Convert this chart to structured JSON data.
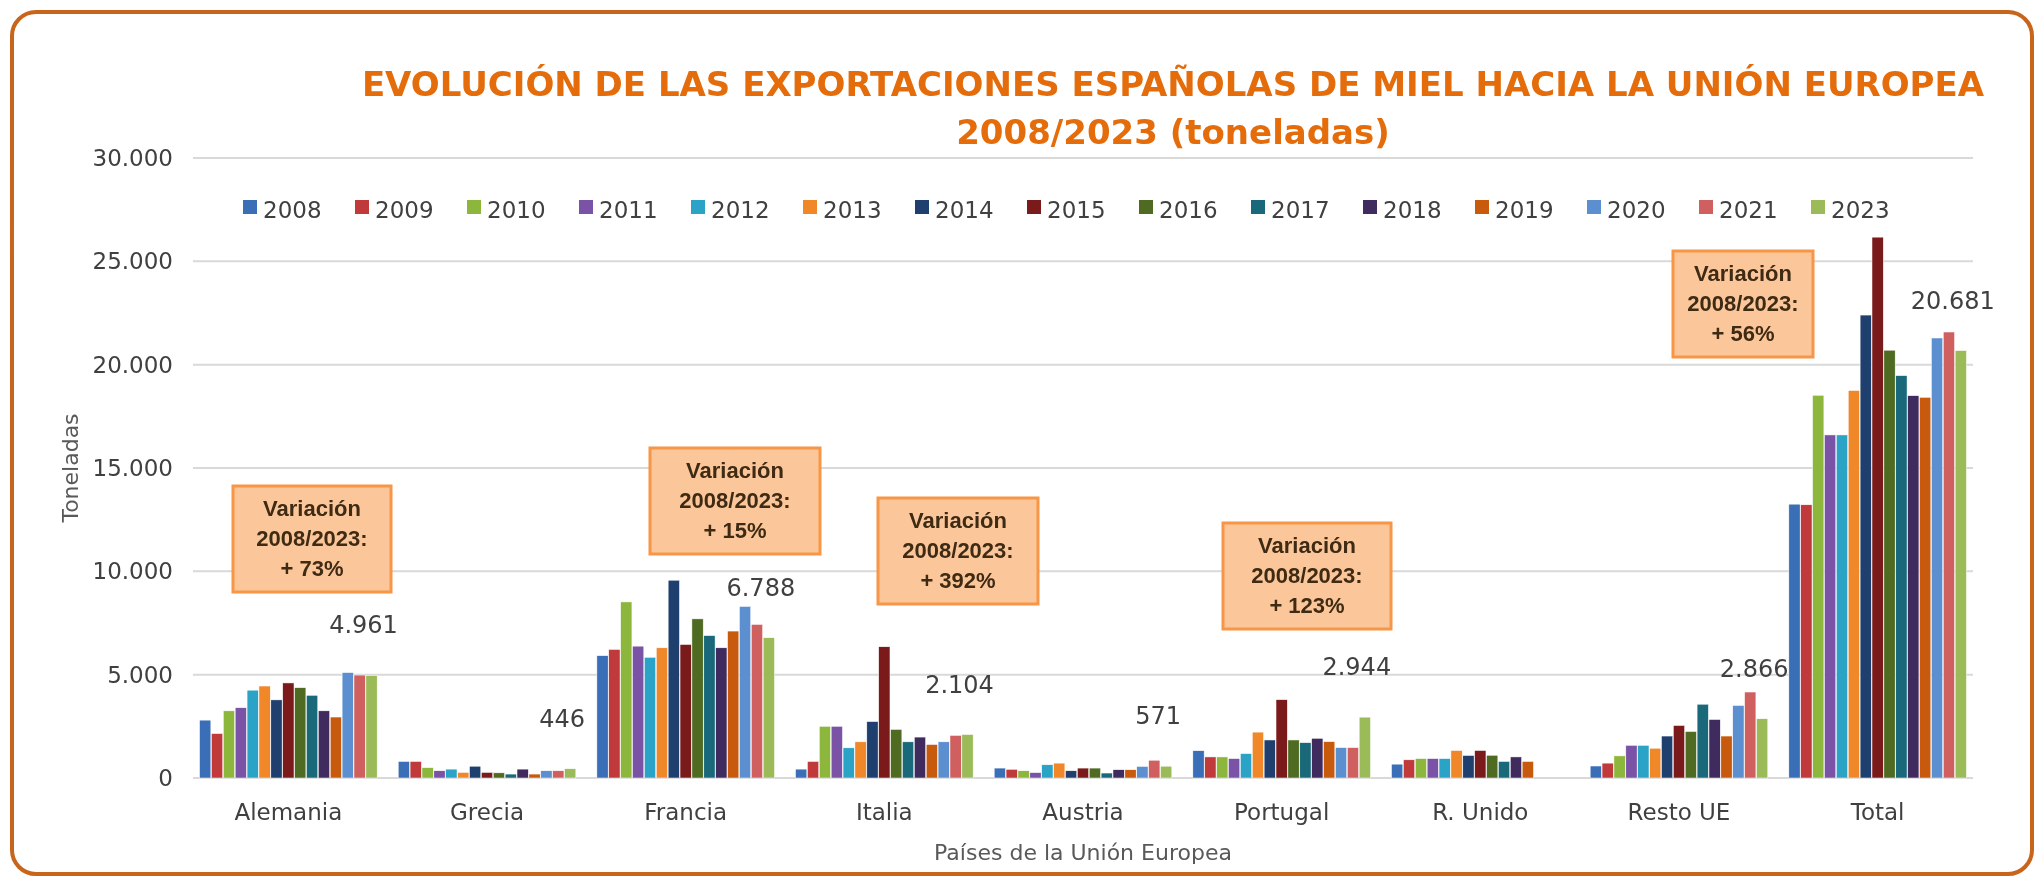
{
  "chart_data": {
    "type": "bar",
    "title": "EVOLUCIÓN DE LAS EXPORTACIONES ESPAÑOLAS DE MIEL HACIA LA UNIÓN EUROPEA\n2008/2023 (toneladas)",
    "xlabel": "Países de la Unión Europea",
    "ylabel": "Toneladas",
    "categories": [
      "Alemania",
      "Grecia",
      "Francia",
      "Italia",
      "Austria",
      "Portugal",
      "R. Unido",
      "Resto UE",
      "Total"
    ],
    "series": [
      {
        "name": "2008",
        "color": "#3a6fb8",
        "values": [
          2800,
          800,
          5920,
          430,
          480,
          1320,
          670,
          580,
          13250
        ]
      },
      {
        "name": "2009",
        "color": "#c0393b",
        "values": [
          2150,
          800,
          6220,
          800,
          420,
          1020,
          880,
          720,
          13220
        ]
      },
      {
        "name": "2010",
        "color": "#8db63c",
        "values": [
          3250,
          500,
          8520,
          2500,
          350,
          1020,
          940,
          1070,
          18520
        ]
      },
      {
        "name": "2011",
        "color": "#7a52a6",
        "values": [
          3400,
          350,
          6380,
          2500,
          260,
          940,
          940,
          1580,
          16600
        ]
      },
      {
        "name": "2012",
        "color": "#2aa3c6",
        "values": [
          4250,
          430,
          5840,
          1460,
          640,
          1180,
          940,
          1580,
          16600
        ]
      },
      {
        "name": "2013",
        "color": "#f0882a",
        "values": [
          4450,
          270,
          6300,
          1750,
          720,
          2220,
          1330,
          1440,
          18750
        ]
      },
      {
        "name": "2014",
        "color": "#1f3f6e",
        "values": [
          3780,
          570,
          9570,
          2730,
          350,
          1840,
          1090,
          2030,
          22400
        ]
      },
      {
        "name": "2015",
        "color": "#7a1a1a",
        "values": [
          4600,
          270,
          6460,
          6350,
          480,
          3790,
          1330,
          2540,
          26170
        ]
      },
      {
        "name": "2016",
        "color": "#4f6b22",
        "values": [
          4370,
          250,
          7700,
          2350,
          480,
          1840,
          1100,
          2250,
          20700
        ]
      },
      {
        "name": "2017",
        "color": "#19697a",
        "values": [
          4000,
          190,
          6890,
          1750,
          240,
          1710,
          800,
          3570,
          19470
        ]
      },
      {
        "name": "2018",
        "color": "#3f2b5e",
        "values": [
          3250,
          430,
          6300,
          1980,
          400,
          1920,
          1020,
          2830,
          18500
        ]
      },
      {
        "name": "2019",
        "color": "#c75a0c",
        "values": [
          2950,
          190,
          7110,
          1620,
          400,
          1760,
          800,
          2030,
          18420
        ]
      },
      {
        "name": "2020",
        "color": "#5b8fd0",
        "values": [
          5100,
          350,
          8300,
          1750,
          560,
          1470,
          null,
          3510,
          21290
        ]
      },
      {
        "name": "2021",
        "color": "#d0605f",
        "values": [
          4980,
          350,
          7430,
          2060,
          860,
          1470,
          null,
          4160,
          21580
        ]
      },
      {
        "name": "2023",
        "color": "#9bbb59",
        "values": [
          4961,
          446,
          6788,
          2104,
          571,
          2944,
          null,
          2866,
          20681
        ],
        "value_labels": [
          "4.961",
          "446",
          "6.788",
          "2.104",
          "571",
          "2.944",
          null,
          "2.866",
          "20.681"
        ]
      }
    ],
    "ylim": [
      0,
      30000
    ],
    "yticks": [
      {
        "value": 0,
        "label": "0"
      },
      {
        "value": 5000,
        "label": "5.000"
      },
      {
        "value": 10000,
        "label": "10.000"
      },
      {
        "value": 15000,
        "label": "15.000"
      },
      {
        "value": 20000,
        "label": "20.000"
      },
      {
        "value": 25000,
        "label": "25.000"
      },
      {
        "value": 30000,
        "label": "30.000"
      }
    ],
    "grid": "y",
    "legend": "top",
    "annotations": [
      "Variación\n2008/2023:\n+ 73%",
      "Variación\n2008/2023:\n+ 15%",
      "Variación\n2008/2023:\n+ 392%",
      "Variación\n2008/2023:\n+ 123%",
      "Variación\n2008/2023:\n+ 56%"
    ]
  }
}
